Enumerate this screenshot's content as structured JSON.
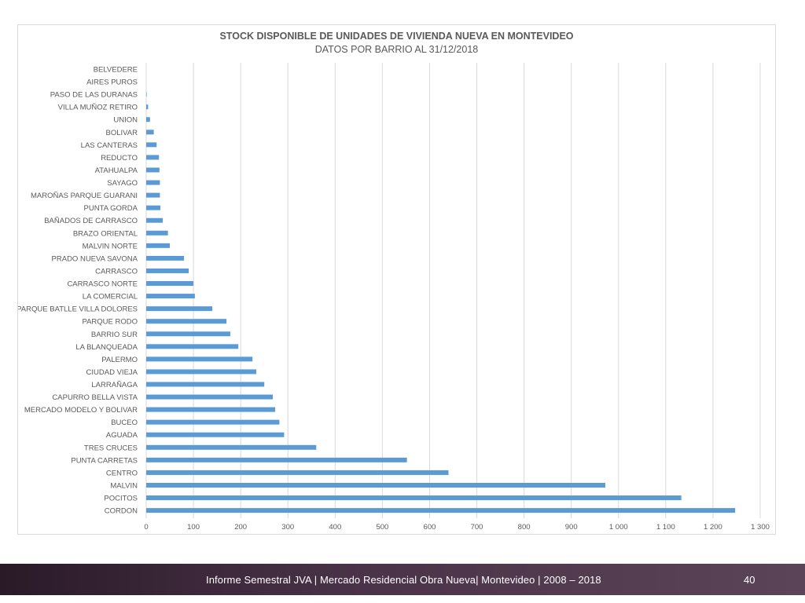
{
  "chart_data": {
    "type": "bar",
    "orientation": "horizontal",
    "title": "STOCK DISPONIBLE DE UNIDADES DE VIVIENDA NUEVA EN MONTEVIDEO",
    "subtitle": "DATOS POR BARRIO AL 31/12/2018",
    "xlabel": "",
    "ylabel": "",
    "xlim": [
      0,
      1300
    ],
    "x_ticks": [
      0,
      100,
      200,
      300,
      400,
      500,
      600,
      700,
      800,
      900,
      1000,
      1100,
      1200,
      1300
    ],
    "x_tick_labels": [
      "0",
      "100",
      "200",
      "300",
      "400",
      "500",
      "600",
      "700",
      "800",
      "900",
      "1 000",
      "1 100",
      "1 200",
      "1 300"
    ],
    "grid": "vertical",
    "bar_color": "#5b9bd5",
    "categories": [
      "BELVEDERE",
      "AIRES PUROS",
      "PASO DE LAS DURANAS",
      "VILLA MUÑOZ RETIRO",
      "UNION",
      "BOLIVAR",
      "LAS CANTERAS",
      "REDUCTO",
      "ATAHUALPA",
      "SAYAGO",
      "MAROÑAS PARQUE GUARANI",
      "PUNTA GORDA",
      "BAÑADOS DE CARRASCO",
      "BRAZO ORIENTAL",
      "MALVIN NORTE",
      "PRADO NUEVA SAVONA",
      "CARRASCO",
      "CARRASCO NORTE",
      "LA COMERCIAL",
      "PARQUE BATLLE VILLA DOLORES",
      "PARQUE RODO",
      "BARRIO SUR",
      "LA BLANQUEADA",
      "PALERMO",
      "CIUDAD VIEJA",
      "LARRAÑAGA",
      "CAPURRO BELLA VISTA",
      "MERCADO MODELO Y BOLIVAR",
      "BUCEO",
      "AGUADA",
      "TRES CRUCES",
      "PUNTA CARRETAS",
      "CENTRO",
      "MALVIN",
      "POCITOS",
      "CORDON"
    ],
    "values": [
      0,
      0,
      1,
      4,
      8,
      16,
      22,
      27,
      28,
      29,
      29,
      30,
      35,
      46,
      50,
      80,
      90,
      100,
      103,
      140,
      170,
      178,
      195,
      225,
      233,
      250,
      268,
      273,
      282,
      292,
      360,
      552,
      640,
      972,
      1133,
      1247
    ]
  },
  "footer": {
    "text": "Informe Semestral JVA | Mercado Residencial Obra Nueva| Montevideo | 2008 – 2018",
    "page_number": "40"
  }
}
